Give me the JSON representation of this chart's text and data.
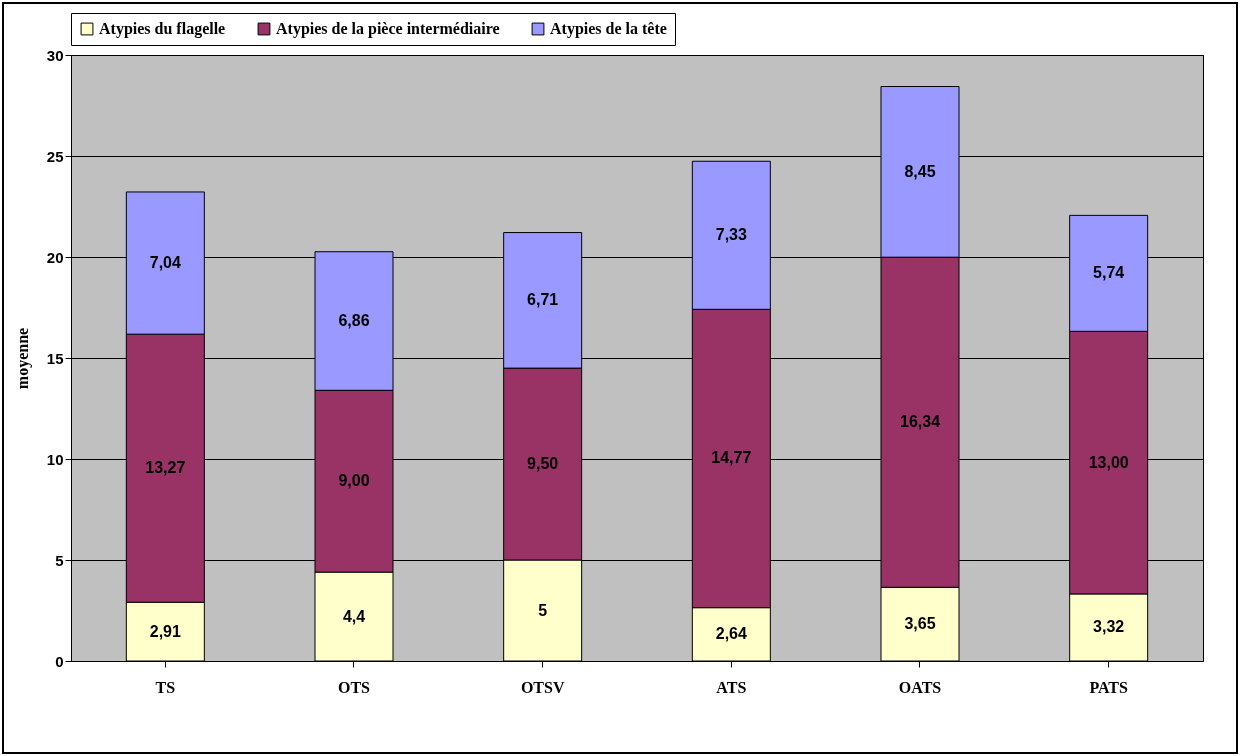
{
  "chart_data": {
    "type": "bar",
    "stacked": true,
    "ylabel": "moyenne",
    "categories": [
      "TS",
      "OTS",
      "OTSV",
      "ATS",
      "OATS",
      "PATS"
    ],
    "series": [
      {
        "name": "Atypies du flagelle",
        "color": "#ffffcc",
        "values": [
          2.91,
          4.4,
          5,
          2.64,
          3.65,
          3.32
        ],
        "value_labels": [
          "2,91",
          "4,4",
          "5",
          "2,64",
          "3,65",
          "3,32"
        ]
      },
      {
        "name": "Atypies de la pièce intermédiaire",
        "color": "#993366",
        "values": [
          13.27,
          9.0,
          9.5,
          14.77,
          16.34,
          13.0
        ],
        "value_labels": [
          "13,27",
          "9,00",
          "9,50",
          "14,77",
          "16,34",
          "13,00"
        ]
      },
      {
        "name": "Atypies de la tête",
        "color": "#9999ff",
        "values": [
          7.04,
          6.86,
          6.71,
          7.33,
          8.45,
          5.74
        ],
        "value_labels": [
          "7,04",
          "6,86",
          "6,71",
          "7,33",
          "8,45",
          "5,74"
        ]
      }
    ],
    "ylim": [
      0,
      30
    ],
    "yticks": [
      0,
      5,
      10,
      15,
      20,
      25,
      30
    ],
    "grid": "y",
    "legend": "top"
  }
}
